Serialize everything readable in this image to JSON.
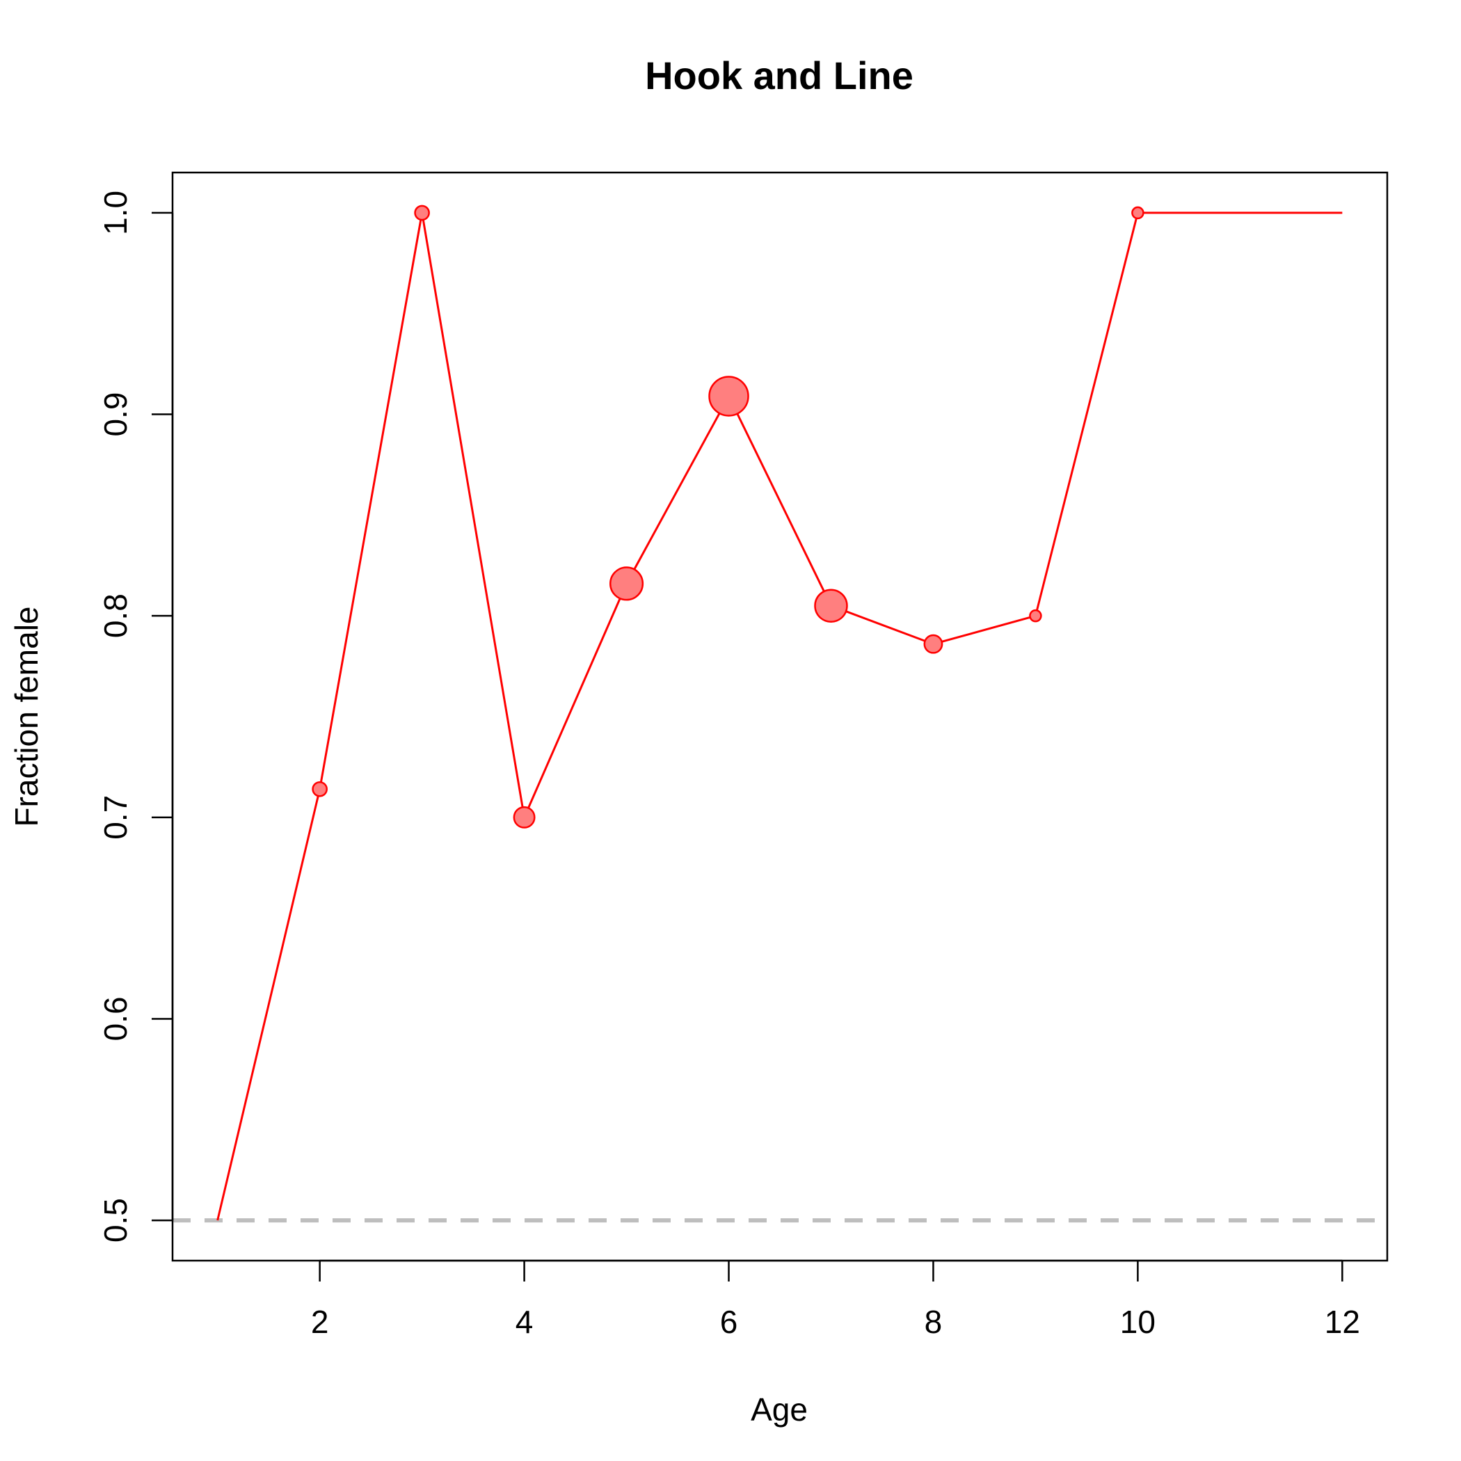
{
  "chart_data": {
    "type": "line",
    "title": "Hook and Line",
    "xlabel": "Age",
    "ylabel": "Fraction female",
    "xlim": [
      0.56,
      12.44
    ],
    "ylim": [
      0.48,
      1.02
    ],
    "x_ticks": [
      2,
      4,
      6,
      8,
      10,
      12
    ],
    "y_ticks": [
      0.5,
      0.6,
      0.7,
      0.8,
      0.9,
      1.0
    ],
    "x_tick_labels": [
      "2",
      "4",
      "6",
      "8",
      "10",
      "12"
    ],
    "y_tick_labels": [
      "0.5",
      "0.6",
      "0.7",
      "0.8",
      "0.9",
      "1.0"
    ],
    "grid": false,
    "legend": "none",
    "reference_line": {
      "y": 0.5,
      "style": "dashed",
      "color": "#bebebe"
    },
    "series": [
      {
        "color": "#ff0000",
        "fill": "#ff7f7f",
        "points": [
          {
            "x": 1,
            "y": 0.5,
            "relative_n": 0.0
          },
          {
            "x": 2,
            "y": 0.714,
            "relative_n": 0.08
          },
          {
            "x": 3,
            "y": 1.0,
            "relative_n": 0.08
          },
          {
            "x": 4,
            "y": 0.7,
            "relative_n": 0.22
          },
          {
            "x": 5,
            "y": 0.816,
            "relative_n": 0.66
          },
          {
            "x": 6,
            "y": 0.909,
            "relative_n": 1.0
          },
          {
            "x": 7,
            "y": 0.805,
            "relative_n": 0.64
          },
          {
            "x": 8,
            "y": 0.786,
            "relative_n": 0.15
          },
          {
            "x": 9,
            "y": 0.8,
            "relative_n": 0.04
          },
          {
            "x": 10,
            "y": 1.0,
            "relative_n": 0.04
          },
          {
            "x": 12,
            "y": 1.0,
            "relative_n": 0.0
          }
        ]
      }
    ]
  }
}
